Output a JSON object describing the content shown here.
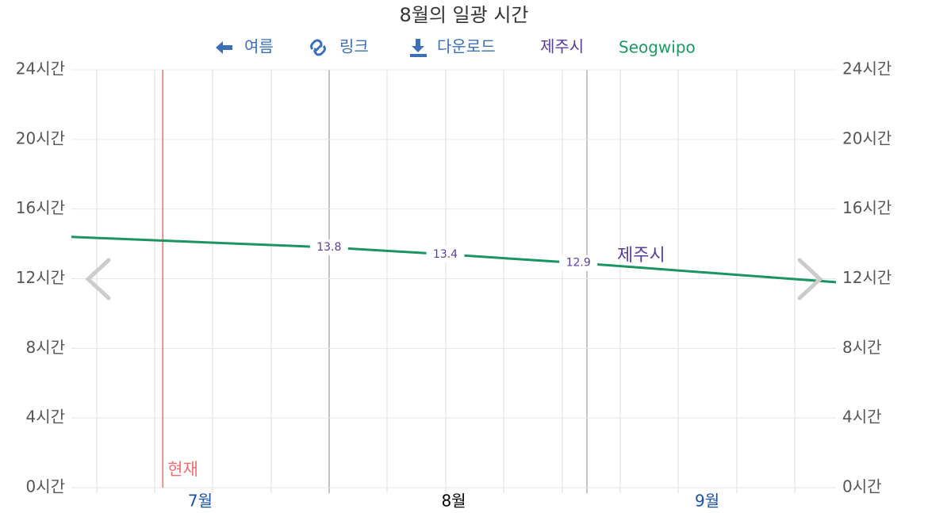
{
  "toolbar": {
    "back": "여름",
    "link": "링크",
    "download": "다운로드",
    "locations": [
      "제주시",
      "Seogwipo"
    ]
  },
  "chart_data": {
    "type": "line",
    "title": "8월의 일광 시간",
    "x": [
      0,
      31,
      45,
      61,
      92
    ],
    "xlim": [
      0,
      92
    ],
    "xticks": [
      {
        "value": 15.5,
        "label": "7월"
      },
      {
        "value": 46,
        "label": "8월"
      },
      {
        "value": 76.5,
        "label": "9월"
      }
    ],
    "series": [
      {
        "name": "제주시",
        "color": "#1a9460",
        "label_color": "#5b3c9e",
        "values": [
          14.4,
          13.8,
          13.4,
          12.9,
          11.8
        ],
        "value_labels": [
          null,
          "13.8",
          "13.4",
          "12.9",
          null
        ]
      }
    ],
    "ylim": [
      0,
      24
    ],
    "yticks": [
      {
        "value": 0,
        "label": "0시간"
      },
      {
        "value": 4,
        "label": "4시간"
      },
      {
        "value": 8,
        "label": "8시간"
      },
      {
        "value": 12,
        "label": "12시간"
      },
      {
        "value": 16,
        "label": "16시간"
      },
      {
        "value": 20,
        "label": "20시간"
      },
      {
        "value": 24,
        "label": "24시간"
      }
    ],
    "grid": true,
    "now": {
      "label": "현재",
      "x": 11,
      "color": "#f07070"
    }
  }
}
